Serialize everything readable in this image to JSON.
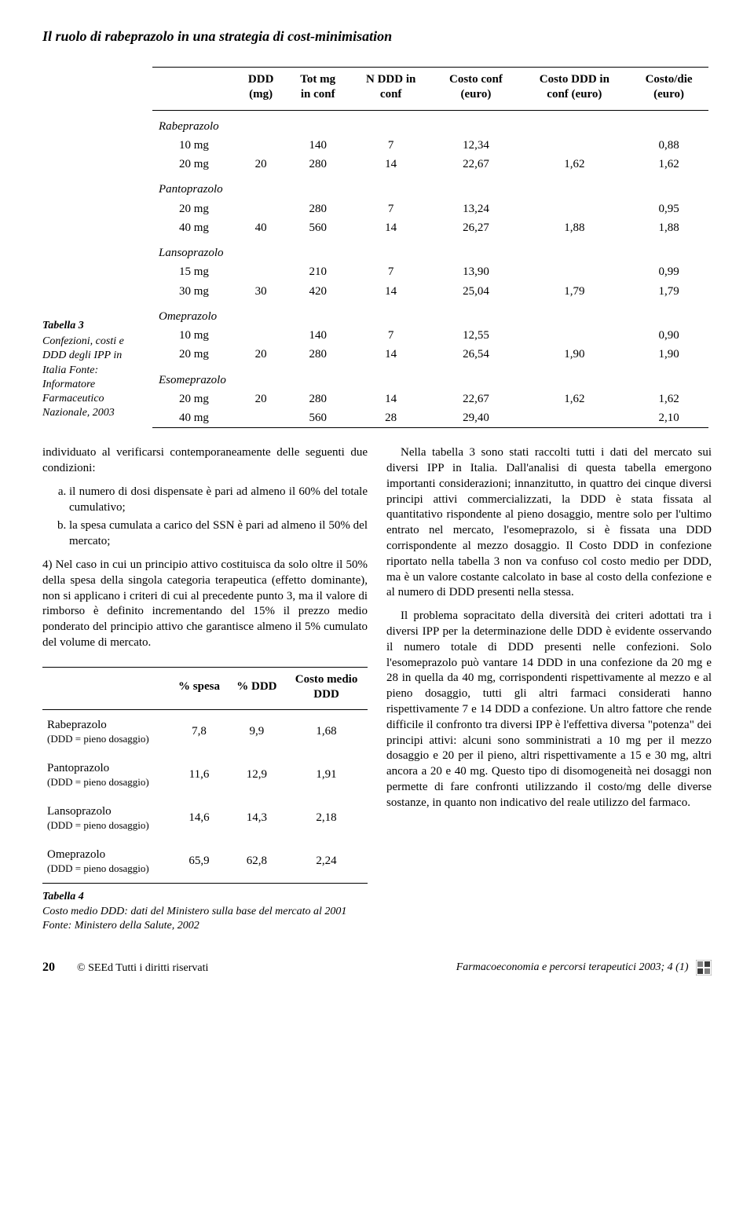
{
  "article_title": "Il ruolo di rabeprazolo in una strategia di cost-minimisation",
  "table3": {
    "type": "table",
    "caption_head": "Tabella 3",
    "caption_body": "Confezioni, costi e DDD degli IPP in Italia\nFonte: Informatore Farmaceutico Nazionale, 2003",
    "columns": [
      "",
      "DDD (mg)",
      "Tot mg in conf",
      "N DDD in conf",
      "Costo conf (euro)",
      "Costo DDD in conf (euro)",
      "Costo/die (euro)"
    ],
    "col_headers_line1": [
      "",
      "DDD",
      "Tot mg",
      "N DDD in",
      "Costo conf",
      "Costo DDD in",
      "Costo/die"
    ],
    "col_headers_line2": [
      "",
      "(mg)",
      "in conf",
      "conf",
      "(euro)",
      "conf (euro)",
      "(euro)"
    ],
    "groups": [
      {
        "name": "Rabeprazolo",
        "rows": [
          {
            "label": "10 mg",
            "ddd": "",
            "tot": "140",
            "nddd": "7",
            "cc": "12,34",
            "cdc": "",
            "cd": "0,88"
          },
          {
            "label": "20 mg",
            "ddd": "20",
            "tot": "280",
            "nddd": "14",
            "cc": "22,67",
            "cdc": "1,62",
            "cd": "1,62"
          }
        ]
      },
      {
        "name": "Pantoprazolo",
        "rows": [
          {
            "label": "20 mg",
            "ddd": "",
            "tot": "280",
            "nddd": "7",
            "cc": "13,24",
            "cdc": "",
            "cd": "0,95"
          },
          {
            "label": "40 mg",
            "ddd": "40",
            "tot": "560",
            "nddd": "14",
            "cc": "26,27",
            "cdc": "1,88",
            "cd": "1,88"
          }
        ]
      },
      {
        "name": "Lansoprazolo",
        "rows": [
          {
            "label": "15 mg",
            "ddd": "",
            "tot": "210",
            "nddd": "7",
            "cc": "13,90",
            "cdc": "",
            "cd": "0,99"
          },
          {
            "label": "30 mg",
            "ddd": "30",
            "tot": "420",
            "nddd": "14",
            "cc": "25,04",
            "cdc": "1,79",
            "cd": "1,79"
          }
        ]
      },
      {
        "name": "Omeprazolo",
        "rows": [
          {
            "label": "10 mg",
            "ddd": "",
            "tot": "140",
            "nddd": "7",
            "cc": "12,55",
            "cdc": "",
            "cd": "0,90"
          },
          {
            "label": "20 mg",
            "ddd": "20",
            "tot": "280",
            "nddd": "14",
            "cc": "26,54",
            "cdc": "1,90",
            "cd": "1,90"
          }
        ]
      },
      {
        "name": "Esomeprazolo",
        "rows": [
          {
            "label": "20 mg",
            "ddd": "20",
            "tot": "280",
            "nddd": "14",
            "cc": "22,67",
            "cdc": "1,62",
            "cd": "1,62"
          },
          {
            "label": "40 mg",
            "ddd": "",
            "tot": "560",
            "nddd": "28",
            "cc": "29,40",
            "cdc": "",
            "cd": "2,10"
          }
        ]
      }
    ],
    "border_color": "#000000",
    "font_size": 15
  },
  "body_left": {
    "para1": "individuato al verificarsi contemporaneamente delle seguenti due condizioni:",
    "li_a": "il numero di dosi dispensate è pari ad almeno il 60% del totale cumulativo;",
    "li_b": "la spesa cumulata a carico del SSN è pari ad almeno il 50% del mercato;",
    "para2_prefix": "4)",
    "para2": "Nel caso in cui un principio attivo costituisca da solo oltre il 50% della spesa della singola categoria terapeutica (effetto dominante), non si applicano i criteri di cui al precedente punto 3, ma il valore di rimborso è definito incrementando del 15% il prezzo medio ponderato del principio attivo che garantisce almeno il 5% cumulato del volume di mercato."
  },
  "body_right": {
    "para1": "Nella tabella 3 sono stati raccolti tutti i dati del mercato sui diversi IPP in Italia. Dall'analisi di questa tabella emergono importanti considerazioni; innanzitutto, in quattro dei cinque diversi principi attivi commercializzati, la DDD è stata fissata al quantitativo rispondente al pieno dosaggio, mentre solo per l'ultimo entrato nel mercato, l'esomeprazolo, si è fissata una DDD corrispondente al mezzo dosaggio. Il Costo DDD in confezione riportato nella tabella 3 non va confuso col costo medio per DDD, ma è un valore costante calcolato in base al costo della confezione e al numero di DDD presenti nella stessa.",
    "para2": "Il problema sopracitato della diversità dei criteri adottati tra i diversi IPP per la determinazione delle DDD è evidente osservando il numero totale di DDD presenti nelle confezioni. Solo l'esomeprazolo può vantare 14 DDD in una confezione da 20 mg e 28 in quella da 40 mg, corrispondenti rispettivamente al mezzo e al pieno dosaggio, tutti gli altri farmaci considerati hanno rispettivamente 7 e 14 DDD a confezione. Un altro fattore che rende difficile il confronto tra diversi IPP è l'effettiva diversa \"potenza\" dei principi attivi: alcuni sono somministrati a 10 mg per il mezzo dosaggio e 20 per il pieno, altri rispettivamente a 15 e 30 mg, altri ancora a 20 e 40 mg. Questo tipo di disomogeneità nei dosaggi non permette di fare confronti utilizzando il costo/mg delle diverse sostanze, in quanto non indicativo del reale utilizzo del farmaco."
  },
  "table4": {
    "type": "table",
    "caption_head": "Tabella 4",
    "caption_body": "Costo medio DDD: dati del Ministero sulla base del mercato al 2001\nFonte: Ministero della Salute, 2002",
    "col_headers_line1": [
      "",
      "% spesa",
      "% DDD",
      "Costo medio"
    ],
    "col_headers_line2": [
      "",
      "",
      "",
      "DDD"
    ],
    "sublabel": "(DDD = pieno dosaggio)",
    "rows": [
      {
        "name": "Rabeprazolo",
        "spesa": "7,8",
        "ddd": "9,9",
        "costo": "1,68"
      },
      {
        "name": "Pantoprazolo",
        "spesa": "11,6",
        "ddd": "12,9",
        "costo": "1,91"
      },
      {
        "name": "Lansoprazolo",
        "spesa": "14,6",
        "ddd": "14,3",
        "costo": "2,18"
      },
      {
        "name": "Omeprazolo",
        "spesa": "65,9",
        "ddd": "62,8",
        "costo": "2,24"
      }
    ],
    "border_color": "#000000",
    "font_size": 15
  },
  "footer": {
    "page": "20",
    "copyright": "© SEEd Tutti i diritti riservati",
    "journal": "Farmacoeconomia e percorsi terapeutici 2003; 4 (1)"
  },
  "colors": {
    "text": "#000000",
    "background": "#ffffff",
    "rule": "#000000",
    "icon_fill": "#808080",
    "icon_dark": "#3a3a3a"
  }
}
